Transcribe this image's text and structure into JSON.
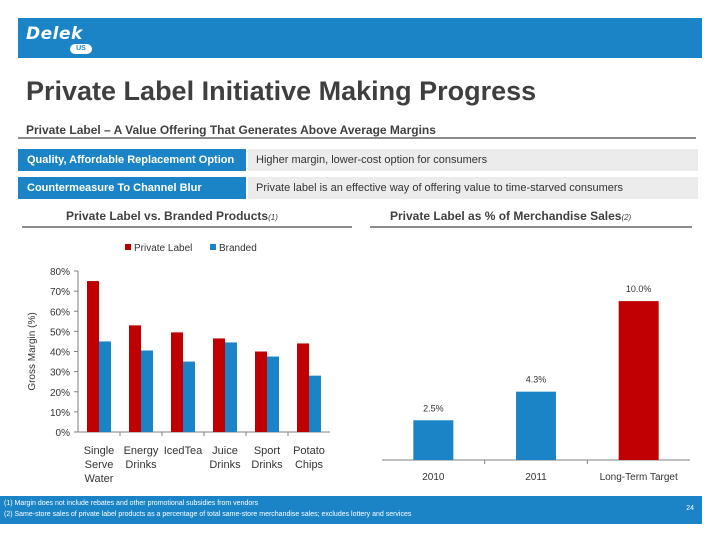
{
  "header": {
    "logo_text": "Delek",
    "logo_badge": "US"
  },
  "title": "Private Label Initiative Making Progress",
  "subtitle": "Private Label – A Value Offering That Generates Above Average Margins",
  "rows": [
    {
      "label": "Quality, Affordable Replacement Option",
      "text": "Higher margin, lower-cost option for consumers"
    },
    {
      "label": "Countermeasure To Channel Blur",
      "text": "Private label is an effective way of offering value to time-starved consumers"
    }
  ],
  "left_chart_title": "Private Label vs. Branded Products",
  "left_chart_note": "(1)",
  "right_chart_title": "Private Label as % of Merchandise Sales",
  "right_chart_note": "(2)",
  "chart_data": [
    {
      "type": "bar",
      "categories": [
        [
          "Single",
          "Serve",
          "Water"
        ],
        [
          "Energy",
          "Drinks"
        ],
        [
          "IcedTea"
        ],
        [
          "Juice",
          "Drinks"
        ],
        [
          "Sport",
          "Drinks"
        ],
        [
          "Potato",
          "Chips"
        ]
      ],
      "series": [
        {
          "name": "Private Label",
          "values": [
            75,
            53,
            49.5,
            46.5,
            40,
            44
          ],
          "color": "#c00000"
        },
        {
          "name": "Branded",
          "values": [
            45,
            40.5,
            35,
            44.5,
            37.5,
            28
          ],
          "color": "#1a84c7"
        }
      ],
      "ylabel": "Gross Margin (%)",
      "ylim": [
        0,
        80
      ],
      "yticks": [
        "0%",
        "10%",
        "20%",
        "30%",
        "40%",
        "50%",
        "60%",
        "70%",
        "80%"
      ],
      "legend": "top"
    },
    {
      "type": "bar",
      "categories": [
        "2010",
        "2011",
        "Long-Term Target"
      ],
      "values": [
        2.5,
        4.3,
        10.0
      ],
      "labels": [
        "2.5%",
        "4.3%",
        "10.0%"
      ],
      "colors": [
        "#1a84c7",
        "#1a84c7",
        "#c00000"
      ],
      "ylim": [
        0,
        12.9
      ]
    }
  ],
  "footer": {
    "notes": [
      "(1)   Margin does not include rebates and other promotional subsidies from vendors",
      "(2)   Same-store sales of private label products as a percentage of total same-store merchandise sales; excludes lottery and services"
    ],
    "page_number": "24"
  }
}
